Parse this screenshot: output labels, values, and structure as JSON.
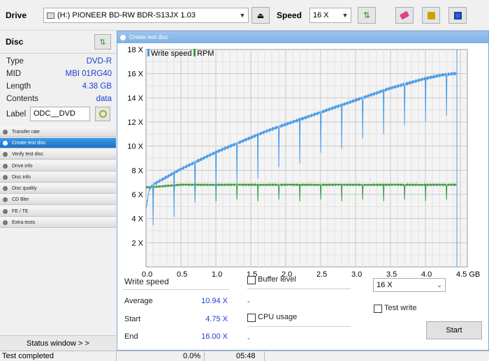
{
  "toolbar": {
    "drive_label": "Drive",
    "drive_value": "(H:)   PIONEER BD-RW   BDR-S13JX 1.03",
    "speed_label": "Speed",
    "speed_value": "16 X"
  },
  "disc": {
    "header": "Disc",
    "rows": [
      {
        "key": "Type",
        "value": "DVD-R"
      },
      {
        "key": "MID",
        "value": "MBI 01RG40"
      },
      {
        "key": "Length",
        "value": "4.38 GB"
      },
      {
        "key": "Contents",
        "value": "data"
      }
    ],
    "label_key": "Label",
    "label_value": "ODC__DVD"
  },
  "nav": {
    "items": [
      {
        "label": "Transfer rate",
        "active": false
      },
      {
        "label": "Create test disc",
        "active": true
      },
      {
        "label": "Verify test disc",
        "active": false
      },
      {
        "label": "Drive info",
        "active": false
      },
      {
        "label": "Disc info",
        "active": false
      },
      {
        "label": "Disc quality",
        "active": false
      },
      {
        "label": "CD Bler",
        "active": false
      },
      {
        "label": "FE / TE",
        "active": false
      },
      {
        "label": "Extra tests",
        "active": false
      }
    ],
    "status_window": "Status window > >"
  },
  "main": {
    "title": "Create test disc",
    "write_speed_label": "Write speed",
    "average_label": "Average",
    "average_value": "10.94 X",
    "start_label": "Start",
    "start_value": "4.75 X",
    "end_label": "End",
    "end_value": "16.00 X",
    "dash": "-",
    "buffer_label": "Buffer level",
    "cpu_label": "CPU usage",
    "speed_select": "16 X",
    "test_write_label": "Test write",
    "start_button": "Start"
  },
  "statusbar": {
    "text": "Test completed",
    "percent": "0.0%",
    "time": "05:48"
  },
  "colors": {
    "write_speed": "#4a9be8",
    "rpm": "#3a9a3a",
    "accent": "#1a6fc7",
    "value_text": "#1a3fd0"
  },
  "chart_data": {
    "type": "line",
    "xlim": [
      0,
      4.6
    ],
    "ylim": [
      0,
      18
    ],
    "x_ticks": [
      "0.0",
      "0.5",
      "1.0",
      "1.5",
      "2.0",
      "2.5",
      "3.0",
      "3.5",
      "4.0",
      "4.5 GB"
    ],
    "y_ticks": [
      "2 X",
      "4 X",
      "6 X",
      "8 X",
      "10 X",
      "12 X",
      "14 X",
      "16 X",
      "18 X"
    ],
    "grid": true,
    "legend_position": "top-left",
    "series": [
      {
        "name": "Write speed",
        "x": [
          0.0,
          0.05,
          0.1,
          0.25,
          0.5,
          0.75,
          1.0,
          1.25,
          1.5,
          1.75,
          2.0,
          2.25,
          2.5,
          2.75,
          3.0,
          3.25,
          3.5,
          3.75,
          4.0,
          4.25,
          4.4,
          4.45
        ],
        "y": [
          4.75,
          6.5,
          6.8,
          7.3,
          8.1,
          8.8,
          9.5,
          10.1,
          10.7,
          11.3,
          11.8,
          12.3,
          12.8,
          13.3,
          13.8,
          14.3,
          14.8,
          15.2,
          15.6,
          15.9,
          16.0,
          16.0
        ]
      },
      {
        "name": "RPM",
        "x": [
          0.0,
          0.05,
          0.5,
          1.0,
          1.5,
          2.0,
          2.5,
          3.0,
          3.5,
          4.0,
          4.45
        ],
        "y": [
          6.6,
          6.6,
          6.8,
          6.8,
          6.8,
          6.8,
          6.8,
          6.8,
          6.8,
          6.8,
          6.8
        ]
      }
    ]
  }
}
